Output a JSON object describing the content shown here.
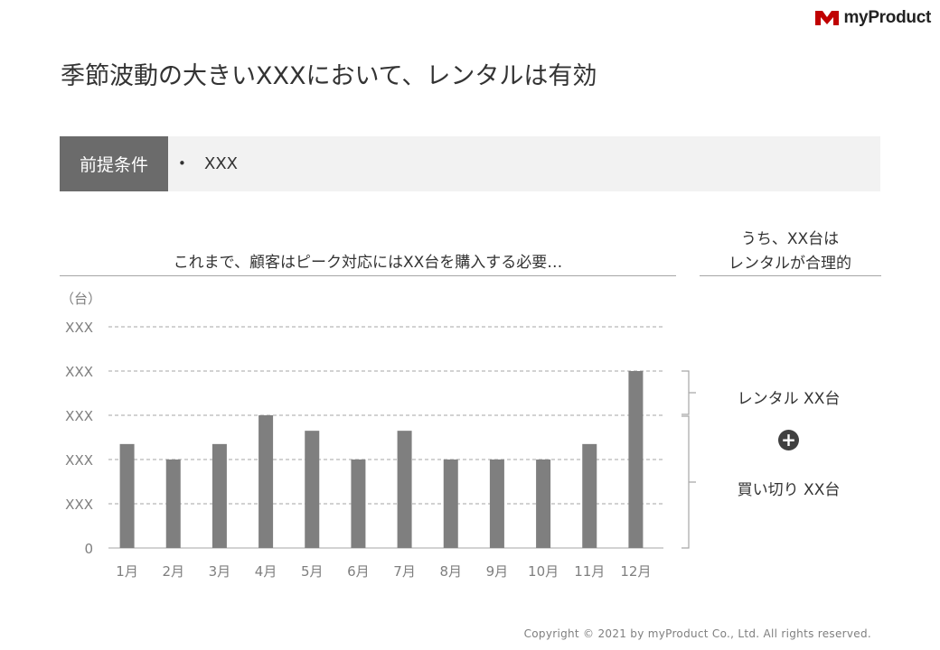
{
  "brand": {
    "name": "myProduct",
    "logo_color": "#c00000"
  },
  "title": "季節波動の大きいXXXにおいて、レンタルは有効",
  "premise": {
    "label": "前提条件",
    "bullet": "•",
    "value": "XXX"
  },
  "left_header": "これまで、顧客はピーク対応にはXX台を購入する必要…",
  "right_header": {
    "line1": "うち、XX台は",
    "line2": "レンタルが合理的"
  },
  "unit_label": "（台）",
  "breakdown": {
    "rental": "レンタル XX台",
    "plus": "+",
    "purchase": "買い切り XX台"
  },
  "copyright": "Copyright © 2021 by myProduct Co., Ltd.  All rights reserved.",
  "chart_data": {
    "type": "bar",
    "categories": [
      "1月",
      "2月",
      "3月",
      "4月",
      "5月",
      "6月",
      "7月",
      "8月",
      "9月",
      "10月",
      "11月",
      "12月"
    ],
    "values": [
      2.35,
      2.0,
      2.35,
      3.0,
      2.65,
      2.0,
      2.65,
      2.0,
      2.0,
      2.0,
      2.35,
      4.0
    ],
    "y_tick_labels": [
      "0",
      "XXX",
      "XXX",
      "XXX",
      "XXX",
      "XXX"
    ],
    "ylim": [
      0,
      5
    ],
    "ylabel": "（台）",
    "grid": "dashed horizontal",
    "bar_color": "#7f7f7f"
  }
}
